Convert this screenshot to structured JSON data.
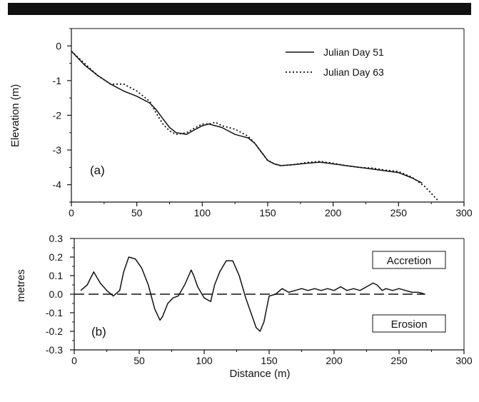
{
  "chart_data": [
    {
      "panel_label": "(a)",
      "type": "line",
      "ylabel": "Elevation (m)",
      "xlabel": "",
      "xlim": [
        0,
        300
      ],
      "ylim": [
        -4.5,
        0.5
      ],
      "x_ticks": [
        0,
        50,
        100,
        150,
        200,
        250,
        300
      ],
      "y_ticks": [
        0,
        -1,
        -2,
        -3,
        -4
      ],
      "grid": false,
      "legend_position": "top-right",
      "series": [
        {
          "name": "Julian Day 51",
          "style": "solid",
          "x": [
            0,
            10,
            20,
            30,
            40,
            50,
            60,
            65,
            70,
            75,
            80,
            88,
            95,
            100,
            105,
            110,
            115,
            120,
            125,
            130,
            135,
            140,
            145,
            150,
            155,
            160,
            170,
            180,
            190,
            200,
            210,
            220,
            230,
            240,
            250,
            260,
            268
          ],
          "y": [
            -0.15,
            -0.55,
            -0.85,
            -1.1,
            -1.3,
            -1.45,
            -1.65,
            -1.85,
            -2.1,
            -2.35,
            -2.5,
            -2.55,
            -2.4,
            -2.3,
            -2.25,
            -2.3,
            -2.35,
            -2.45,
            -2.55,
            -2.6,
            -2.65,
            -2.8,
            -3.05,
            -3.3,
            -3.4,
            -3.45,
            -3.42,
            -3.38,
            -3.35,
            -3.4,
            -3.45,
            -3.5,
            -3.55,
            -3.6,
            -3.65,
            -3.8,
            -3.95
          ]
        },
        {
          "name": "Julian Day 63",
          "style": "dotted",
          "x": [
            0,
            10,
            20,
            30,
            40,
            50,
            60,
            65,
            70,
            75,
            80,
            88,
            95,
            100,
            105,
            110,
            115,
            120,
            125,
            130,
            135,
            140,
            145,
            150,
            155,
            160,
            170,
            180,
            190,
            200,
            210,
            220,
            230,
            240,
            250,
            260,
            270,
            280
          ],
          "y": [
            -0.15,
            -0.5,
            -0.85,
            -1.1,
            -1.1,
            -1.3,
            -1.6,
            -1.95,
            -2.25,
            -2.45,
            -2.55,
            -2.5,
            -2.35,
            -2.25,
            -2.25,
            -2.2,
            -2.3,
            -2.35,
            -2.4,
            -2.5,
            -2.6,
            -2.8,
            -3.05,
            -3.3,
            -3.4,
            -3.45,
            -3.42,
            -3.36,
            -3.33,
            -3.38,
            -3.45,
            -3.5,
            -3.52,
            -3.58,
            -3.62,
            -3.78,
            -4.05,
            -4.45
          ]
        }
      ]
    },
    {
      "panel_label": "(b)",
      "type": "line",
      "ylabel": "metres",
      "xlabel": "Distance (m)",
      "xlim": [
        0,
        300
      ],
      "ylim": [
        -0.3,
        0.3
      ],
      "x_ticks": [
        0,
        50,
        100,
        150,
        200,
        250,
        300
      ],
      "y_ticks": [
        0.3,
        0.2,
        0.1,
        0.0,
        -0.1,
        -0.2,
        -0.3
      ],
      "y_tick_labels": [
        "0.3",
        "0.2",
        "0.1",
        "0.0",
        "-0.1",
        "-0.2",
        "-0.3"
      ],
      "grid": false,
      "reference_line": {
        "y": 0,
        "style": "dashed",
        "x_range": [
          0,
          270
        ]
      },
      "annotations": [
        "Accretion",
        "Erosion"
      ],
      "series": [
        {
          "style": "solid",
          "x": [
            5,
            10,
            15,
            20,
            25,
            30,
            35,
            38,
            42,
            47,
            52,
            57,
            62,
            66,
            68,
            72,
            76,
            80,
            85,
            90,
            92,
            95,
            100,
            105,
            108,
            112,
            117,
            122,
            127,
            132,
            136,
            140,
            143,
            146,
            150,
            155,
            160,
            165,
            170,
            175,
            180,
            185,
            190,
            195,
            200,
            205,
            210,
            215,
            220,
            225,
            230,
            233,
            237,
            240,
            245,
            250,
            255,
            260,
            265,
            270
          ],
          "y": [
            0.02,
            0.05,
            0.12,
            0.06,
            0.02,
            -0.01,
            0.02,
            0.12,
            0.2,
            0.19,
            0.14,
            0.05,
            -0.08,
            -0.14,
            -0.12,
            -0.05,
            -0.02,
            -0.01,
            0.05,
            0.13,
            0.1,
            0.04,
            -0.02,
            -0.04,
            0.05,
            0.12,
            0.18,
            0.18,
            0.1,
            -0.02,
            -0.1,
            -0.18,
            -0.2,
            -0.15,
            -0.01,
            0.0,
            0.03,
            0.01,
            0.02,
            0.03,
            0.02,
            0.03,
            0.02,
            0.03,
            0.02,
            0.04,
            0.02,
            0.03,
            0.02,
            0.04,
            0.06,
            0.05,
            0.02,
            0.03,
            0.02,
            0.03,
            0.02,
            0.01,
            0.01,
            0.0
          ]
        }
      ]
    }
  ]
}
